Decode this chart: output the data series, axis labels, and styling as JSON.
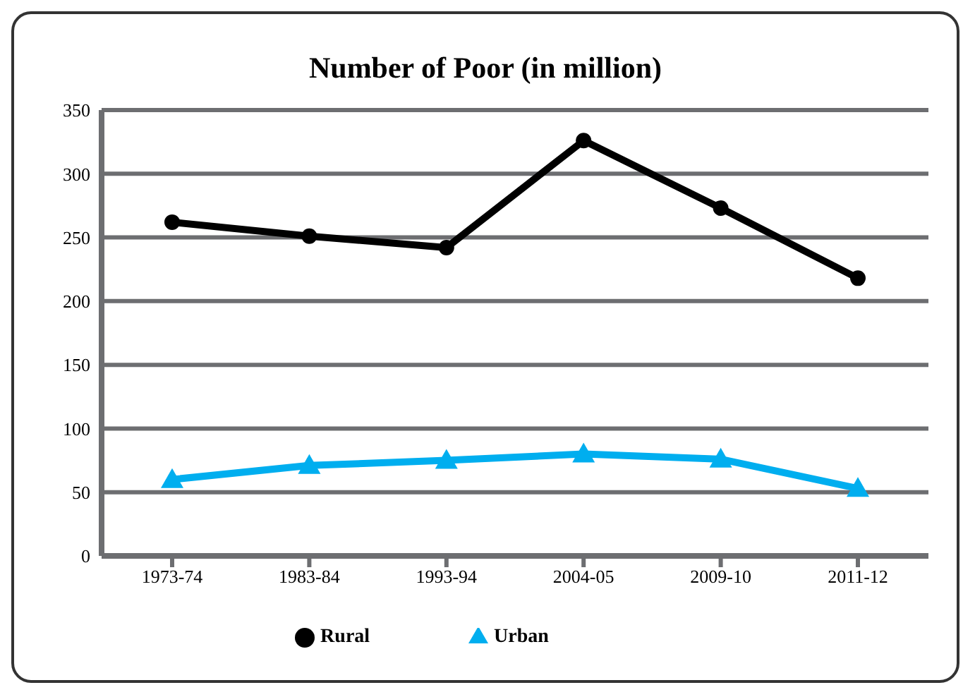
{
  "chart_data": {
    "type": "line",
    "title": "Number of Poor (in million)",
    "categories": [
      "1973-74",
      "1983-84",
      "1993-94",
      "2004-05",
      "2009-10",
      "2011-12"
    ],
    "series": [
      {
        "name": "Rural",
        "color": "#000000",
        "marker": "circle",
        "values": [
          262,
          251,
          242,
          326,
          273,
          218
        ]
      },
      {
        "name": "Urban",
        "color": "#00aeef",
        "marker": "triangle",
        "values": [
          60,
          71,
          75,
          80,
          76,
          53
        ]
      }
    ],
    "ylim": [
      0,
      350
    ],
    "yticks": [
      0,
      50,
      100,
      150,
      200,
      250,
      300,
      350
    ],
    "grid": "y",
    "legend": "bottom"
  }
}
